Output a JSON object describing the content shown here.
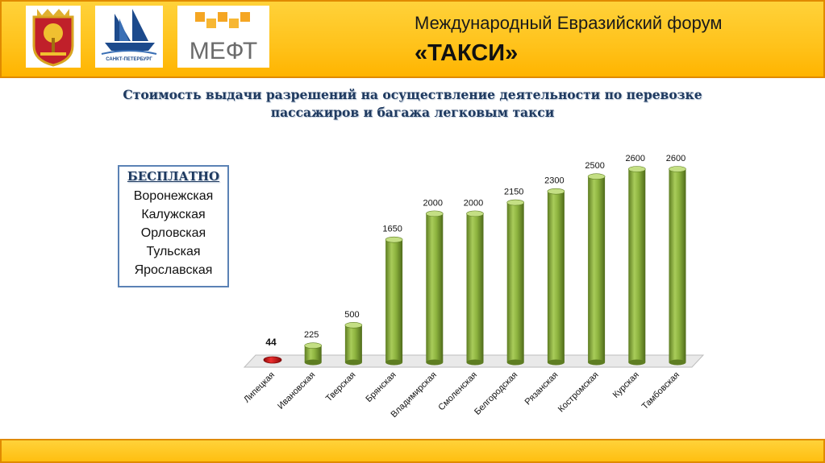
{
  "header": {
    "title": "Международный Евразийский форум",
    "subtitle": "«ТАКСИ»",
    "logos": [
      {
        "name": "coat-of-arms-icon"
      },
      {
        "name": "saint-petersburg-ship-logo",
        "caption": "САНКТ-ПЕТЕРБУРГ"
      },
      {
        "name": "meft-logo",
        "text": "МЕФТ"
      }
    ]
  },
  "free_box": {
    "title": "БЕСПЛАТНО",
    "items": [
      "Воронежская",
      "Калужская",
      "Орловская",
      "Тульская",
      "Ярославская"
    ]
  },
  "chart_data": {
    "type": "bar",
    "title": "Стоимость выдачи разрешений на осуществление деятельности по перевозке пассажиров и багажа легковым такси",
    "categories": [
      "Липецкая",
      "Ивановская",
      "Тверская",
      "Брянская",
      "Владимирская",
      "Смоленская",
      "Белгородская",
      "Рязанская",
      "Костромская",
      "Курская",
      "Тамбовская"
    ],
    "values": [
      44,
      225,
      500,
      1650,
      2000,
      2000,
      2150,
      2300,
      2500,
      2600,
      2600
    ],
    "data_labels": [
      "44",
      "225",
      "500",
      "1650",
      "2000",
      "2000",
      "2150",
      "2300",
      "2500",
      "2600",
      "2600"
    ],
    "highlight_index": 0,
    "ylim": [
      0,
      2600
    ],
    "grid": false,
    "colors": {
      "bar": "#8db33f",
      "bar_dark": "#5e7d22",
      "bar_light": "#c4df84",
      "highlight": "#cc1010",
      "floor": "#e6e6e6"
    }
  }
}
